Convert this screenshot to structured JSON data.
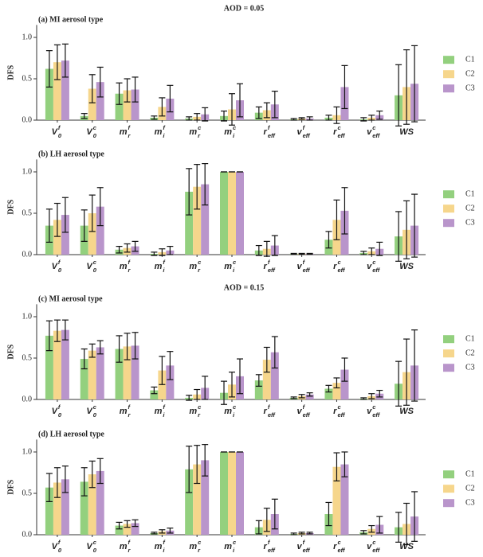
{
  "chart_data": [
    {
      "type": "bar",
      "header": "AOD = 0.05",
      "title": "(a) MI aerosol type",
      "ylabel": "DFS",
      "categories": [
        {
          "base": "V",
          "sub": "0",
          "sup": "f"
        },
        {
          "base": "V",
          "sub": "0",
          "sup": "c"
        },
        {
          "base": "m",
          "sub": "r",
          "sup": "f"
        },
        {
          "base": "m",
          "sub": "i",
          "sup": "f"
        },
        {
          "base": "m",
          "sub": "r",
          "sup": "c"
        },
        {
          "base": "m",
          "sub": "i",
          "sup": "c"
        },
        {
          "base": "r",
          "sub": "eff",
          "sup": "f"
        },
        {
          "base": "v",
          "sub": "eff",
          "sup": "f"
        },
        {
          "base": "r",
          "sub": "eff",
          "sup": "c"
        },
        {
          "base": "v",
          "sub": "eff",
          "sup": "c"
        },
        {
          "base": "WS"
        }
      ],
      "series": [
        {
          "name": "C1",
          "color": "#93d07e",
          "values": [
            0.62,
            0.05,
            0.32,
            0.03,
            0.02,
            0.05,
            0.09,
            0.01,
            0.03,
            0.01,
            0.3
          ],
          "errors": [
            0.22,
            0.03,
            0.13,
            0.02,
            0.02,
            0.06,
            0.07,
            0.01,
            0.03,
            0.02,
            0.37
          ]
        },
        {
          "name": "C2",
          "color": "#f6d68c",
          "values": [
            0.7,
            0.38,
            0.36,
            0.16,
            0.04,
            0.13,
            0.12,
            0.02,
            0.06,
            0.03,
            0.4
          ],
          "errors": [
            0.21,
            0.17,
            0.14,
            0.11,
            0.04,
            0.19,
            0.09,
            0.01,
            0.1,
            0.03,
            0.45
          ]
        },
        {
          "name": "C3",
          "color": "#b995cb",
          "values": [
            0.72,
            0.46,
            0.37,
            0.26,
            0.07,
            0.24,
            0.19,
            0.02,
            0.4,
            0.06,
            0.44
          ],
          "errors": [
            0.2,
            0.18,
            0.15,
            0.16,
            0.08,
            0.2,
            0.16,
            0.02,
            0.26,
            0.05,
            0.46
          ]
        }
      ],
      "ylim": [
        0,
        1.15
      ],
      "yticks": [
        {
          "value": 0,
          "label": "0.0"
        },
        {
          "value": 0.5,
          "label": "0.5"
        },
        {
          "value": 1,
          "label": "1.0"
        }
      ]
    },
    {
      "type": "bar",
      "title": "(b) LH aerosol type",
      "ylabel": "DFS",
      "categories": [
        {
          "base": "V",
          "sub": "0",
          "sup": "f"
        },
        {
          "base": "V",
          "sub": "0",
          "sup": "c"
        },
        {
          "base": "m",
          "sub": "r",
          "sup": "f"
        },
        {
          "base": "m",
          "sub": "i",
          "sup": "f"
        },
        {
          "base": "m",
          "sub": "r",
          "sup": "c"
        },
        {
          "base": "m",
          "sub": "i",
          "sup": "c"
        },
        {
          "base": "r",
          "sub": "eff",
          "sup": "f"
        },
        {
          "base": "v",
          "sub": "eff",
          "sup": "f"
        },
        {
          "base": "r",
          "sub": "eff",
          "sup": "c"
        },
        {
          "base": "v",
          "sub": "eff",
          "sup": "c"
        },
        {
          "base": "WS"
        }
      ],
      "series": [
        {
          "name": "C1",
          "color": "#93d07e",
          "values": [
            0.35,
            0.35,
            0.06,
            0.01,
            0.76,
            1,
            0.05,
            0.01,
            0.18,
            0.02,
            0.22
          ],
          "errors": [
            0.2,
            0.19,
            0.04,
            0.02,
            0.28,
            0,
            0.06,
            0.005,
            0.1,
            0.02,
            0.3
          ]
        },
        {
          "name": "C2",
          "color": "#f6d68c",
          "values": [
            0.42,
            0.5,
            0.08,
            0.03,
            0.82,
            1,
            0.07,
            0.01,
            0.42,
            0.04,
            0.3
          ],
          "errors": [
            0.2,
            0.22,
            0.05,
            0.04,
            0.27,
            0,
            0.09,
            0.005,
            0.24,
            0.04,
            0.35
          ]
        },
        {
          "name": "C3",
          "color": "#b995cb",
          "values": [
            0.48,
            0.58,
            0.1,
            0.05,
            0.85,
            1,
            0.11,
            0.01,
            0.53,
            0.07,
            0.35
          ],
          "errors": [
            0.21,
            0.23,
            0.06,
            0.05,
            0.25,
            0,
            0.12,
            0.005,
            0.28,
            0.08,
            0.38
          ]
        }
      ],
      "ylim": [
        0,
        1.15
      ],
      "yticks": [
        {
          "value": 0,
          "label": "0.0"
        },
        {
          "value": 0.5,
          "label": "0.5"
        },
        {
          "value": 1,
          "label": "1.0"
        }
      ]
    },
    {
      "type": "bar",
      "header": "AOD = 0.15",
      "title": "(c) MI aerosol type",
      "ylabel": "DFS",
      "categories": [
        {
          "base": "V",
          "sub": "0",
          "sup": "f"
        },
        {
          "base": "V",
          "sub": "0",
          "sup": "c"
        },
        {
          "base": "m",
          "sub": "r",
          "sup": "f"
        },
        {
          "base": "m",
          "sub": "i",
          "sup": "f"
        },
        {
          "base": "m",
          "sub": "r",
          "sup": "c"
        },
        {
          "base": "m",
          "sub": "i",
          "sup": "c"
        },
        {
          "base": "r",
          "sub": "eff",
          "sup": "f"
        },
        {
          "base": "v",
          "sub": "eff",
          "sup": "f"
        },
        {
          "base": "r",
          "sub": "eff",
          "sup": "c"
        },
        {
          "base": "v",
          "sub": "eff",
          "sup": "c"
        },
        {
          "base": "WS"
        }
      ],
      "series": [
        {
          "name": "C1",
          "color": "#93d07e",
          "values": [
            0.77,
            0.49,
            0.61,
            0.11,
            0.02,
            0.08,
            0.23,
            0.02,
            0.13,
            0.01,
            0.19
          ],
          "errors": [
            0.18,
            0.12,
            0.16,
            0.04,
            0.03,
            0.14,
            0.07,
            0.01,
            0.04,
            0.01,
            0.27
          ]
        },
        {
          "name": "C2",
          "color": "#f6d68c",
          "values": [
            0.83,
            0.59,
            0.64,
            0.35,
            0.06,
            0.18,
            0.48,
            0.04,
            0.2,
            0.04,
            0.33
          ],
          "errors": [
            0.13,
            0.08,
            0.16,
            0.17,
            0.06,
            0.15,
            0.15,
            0.02,
            0.06,
            0.03,
            0.4
          ]
        },
        {
          "name": "C3",
          "color": "#b995cb",
          "values": [
            0.84,
            0.63,
            0.65,
            0.41,
            0.14,
            0.28,
            0.57,
            0.06,
            0.36,
            0.07,
            0.41
          ],
          "errors": [
            0.12,
            0.08,
            0.16,
            0.17,
            0.14,
            0.21,
            0.19,
            0.02,
            0.14,
            0.04,
            0.43
          ]
        }
      ],
      "ylim": [
        0,
        1.15
      ],
      "yticks": [
        {
          "value": 0,
          "label": "0.0"
        },
        {
          "value": 0.5,
          "label": "0.5"
        },
        {
          "value": 1,
          "label": "1.0"
        }
      ]
    },
    {
      "type": "bar",
      "title": "(d) LH aerosol type",
      "ylabel": "DFS",
      "categories": [
        {
          "base": "V",
          "sub": "0",
          "sup": "f"
        },
        {
          "base": "V",
          "sub": "0",
          "sup": "c"
        },
        {
          "base": "m",
          "sub": "r",
          "sup": "f"
        },
        {
          "base": "m",
          "sub": "i",
          "sup": "f"
        },
        {
          "base": "m",
          "sub": "r",
          "sup": "c"
        },
        {
          "base": "m",
          "sub": "i",
          "sup": "c"
        },
        {
          "base": "r",
          "sub": "eff",
          "sup": "f"
        },
        {
          "base": "v",
          "sub": "eff",
          "sup": "f"
        },
        {
          "base": "r",
          "sub": "eff",
          "sup": "c"
        },
        {
          "base": "v",
          "sub": "eff",
          "sup": "c"
        },
        {
          "base": "WS"
        }
      ],
      "series": [
        {
          "name": "C1",
          "color": "#93d07e",
          "values": [
            0.57,
            0.64,
            0.11,
            0.02,
            0.79,
            1,
            0.09,
            0.01,
            0.25,
            0.03,
            0.09
          ],
          "errors": [
            0.17,
            0.17,
            0.04,
            0.01,
            0.28,
            0,
            0.08,
            0.01,
            0.14,
            0.02,
            0.18
          ]
        },
        {
          "name": "C2",
          "color": "#f6d68c",
          "values": [
            0.63,
            0.73,
            0.13,
            0.04,
            0.85,
            1,
            0.18,
            0.02,
            0.82,
            0.07,
            0.13
          ],
          "errors": [
            0.18,
            0.16,
            0.04,
            0.02,
            0.23,
            0,
            0.14,
            0.01,
            0.17,
            0.04,
            0.25
          ]
        },
        {
          "name": "C3",
          "color": "#b995cb",
          "values": [
            0.67,
            0.77,
            0.14,
            0.05,
            0.9,
            1,
            0.25,
            0.02,
            0.85,
            0.12,
            0.22
          ],
          "errors": [
            0.16,
            0.15,
            0.04,
            0.03,
            0.19,
            0,
            0.18,
            0.01,
            0.15,
            0.1,
            0.3
          ]
        }
      ],
      "ylim": [
        0,
        1.15
      ],
      "yticks": [
        {
          "value": 0,
          "label": "0.0"
        },
        {
          "value": 0.5,
          "label": "0.5"
        },
        {
          "value": 1,
          "label": "1.0"
        }
      ]
    }
  ]
}
